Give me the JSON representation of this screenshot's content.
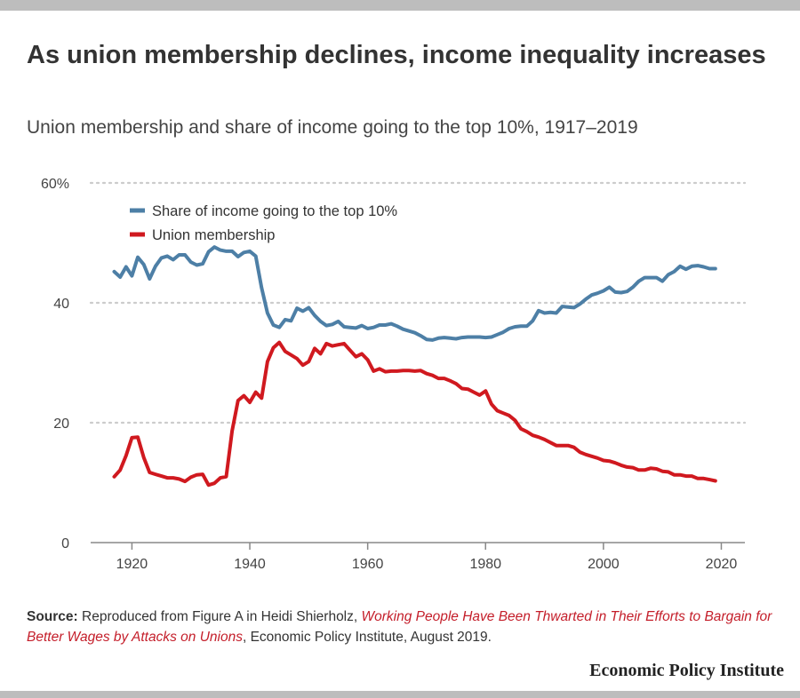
{
  "header": {
    "title": "As union membership declines, income inequality increases",
    "subtitle": "Union membership and share of income going to the top 10%, 1917–2019"
  },
  "colors": {
    "top10": "#4d7fa6",
    "union": "#d0191f",
    "grid": "#cccccc",
    "axis": "#888888"
  },
  "source": {
    "label": "Source:",
    "text_before": " Reproduced from Figure A in Heidi Shierholz, ",
    "ref_title": "Working People Have Been Thwarted in Their Efforts to Bargain for Better Wages by Attacks on Unions",
    "text_after": ", Economic Policy Institute, August 2019."
  },
  "brand": "Economic Policy Institute",
  "chart_data": {
    "type": "line",
    "title": "As union membership declines, income inequality increases",
    "subtitle": "Union membership and share of income going to the top 10%, 1917–2019",
    "xlabel": "",
    "ylabel": "",
    "xlim": [
      1913,
      2024
    ],
    "ylim": [
      0,
      60
    ],
    "x_ticks": [
      1920,
      1940,
      1960,
      1980,
      2000,
      2020
    ],
    "x_tick_labels": [
      "1920",
      "1940",
      "1960",
      "1980",
      "2000",
      "2020"
    ],
    "y_ticks": [
      0,
      20,
      40,
      60
    ],
    "y_tick_labels": [
      "0",
      "20",
      "40",
      "60%"
    ],
    "grid": "horizontal dotted",
    "legend_position": "top-left",
    "series": [
      {
        "name": "Share of income going to the top 10%",
        "color": "#4d7fa6",
        "x": [
          1917,
          1918,
          1919,
          1920,
          1921,
          1922,
          1923,
          1924,
          1925,
          1926,
          1927,
          1928,
          1929,
          1930,
          1931,
          1932,
          1933,
          1934,
          1935,
          1936,
          1937,
          1938,
          1939,
          1940,
          1941,
          1942,
          1943,
          1944,
          1945,
          1946,
          1947,
          1948,
          1949,
          1950,
          1951,
          1952,
          1953,
          1954,
          1955,
          1956,
          1957,
          1958,
          1959,
          1960,
          1961,
          1962,
          1963,
          1964,
          1965,
          1966,
          1967,
          1968,
          1969,
          1970,
          1971,
          1972,
          1973,
          1974,
          1975,
          1976,
          1977,
          1978,
          1979,
          1980,
          1981,
          1982,
          1983,
          1984,
          1985,
          1986,
          1987,
          1988,
          1989,
          1990,
          1991,
          1992,
          1993,
          1994,
          1995,
          1996,
          1997,
          1998,
          1999,
          2000,
          2001,
          2002,
          2003,
          2004,
          2005,
          2006,
          2007,
          2008,
          2009,
          2010,
          2011,
          2012,
          2013,
          2014,
          2015,
          2016,
          2017,
          2018,
          2019
        ],
        "values": [
          45.2,
          44.3,
          46.0,
          44.5,
          47.6,
          46.4,
          44.0,
          46.1,
          47.5,
          47.8,
          47.2,
          48.0,
          48.0,
          46.8,
          46.3,
          46.5,
          48.5,
          49.3,
          48.8,
          48.6,
          48.6,
          47.7,
          48.4,
          48.6,
          47.8,
          42.5,
          38.3,
          36.3,
          35.9,
          37.2,
          37.0,
          39.1,
          38.6,
          39.2,
          37.9,
          36.9,
          36.2,
          36.4,
          36.9,
          36.0,
          35.9,
          35.8,
          36.2,
          35.7,
          35.9,
          36.3,
          36.3,
          36.5,
          36.1,
          35.6,
          35.3,
          35.0,
          34.5,
          33.9,
          33.8,
          34.1,
          34.2,
          34.1,
          34.0,
          34.2,
          34.3,
          34.3,
          34.3,
          34.2,
          34.3,
          34.7,
          35.1,
          35.7,
          36.0,
          36.1,
          36.1,
          37.0,
          38.7,
          38.3,
          38.4,
          38.3,
          39.4,
          39.3,
          39.2,
          39.8,
          40.6,
          41.3,
          41.6,
          42.0,
          42.6,
          41.8,
          41.7,
          41.9,
          42.6,
          43.6,
          44.2,
          44.2,
          44.2,
          43.6,
          44.7,
          45.2,
          46.1,
          45.6,
          46.1,
          46.2,
          46.0,
          45.7,
          45.7
        ]
      },
      {
        "name": "Union membership",
        "color": "#d0191f",
        "x": [
          1917,
          1918,
          1919,
          1920,
          1921,
          1922,
          1923,
          1924,
          1925,
          1926,
          1927,
          1928,
          1929,
          1930,
          1931,
          1932,
          1933,
          1934,
          1935,
          1936,
          1937,
          1938,
          1939,
          1940,
          1941,
          1942,
          1943,
          1944,
          1945,
          1946,
          1947,
          1948,
          1949,
          1950,
          1951,
          1952,
          1953,
          1954,
          1955,
          1956,
          1957,
          1958,
          1959,
          1960,
          1961,
          1962,
          1963,
          1964,
          1965,
          1966,
          1967,
          1968,
          1969,
          1970,
          1971,
          1972,
          1973,
          1974,
          1975,
          1976,
          1977,
          1978,
          1979,
          1980,
          1981,
          1982,
          1983,
          1984,
          1985,
          1986,
          1987,
          1988,
          1989,
          1990,
          1991,
          1992,
          1993,
          1994,
          1995,
          1996,
          1997,
          1998,
          1999,
          2000,
          2001,
          2002,
          2003,
          2004,
          2005,
          2006,
          2007,
          2008,
          2009,
          2010,
          2011,
          2012,
          2013,
          2014,
          2015,
          2016,
          2017,
          2018,
          2019
        ],
        "values": [
          11.0,
          12.1,
          14.5,
          17.5,
          17.6,
          14.2,
          11.7,
          11.4,
          11.1,
          10.8,
          10.8,
          10.6,
          10.2,
          10.9,
          11.3,
          11.4,
          9.6,
          9.9,
          10.8,
          11.0,
          18.6,
          23.7,
          24.5,
          23.4,
          25.1,
          24.1,
          30.2,
          32.5,
          33.4,
          31.9,
          31.3,
          30.7,
          29.6,
          30.2,
          32.4,
          31.5,
          33.2,
          32.8,
          33.0,
          33.2,
          32.1,
          31.0,
          31.5,
          30.5,
          28.6,
          29.0,
          28.5,
          28.6,
          28.6,
          28.7,
          28.7,
          28.6,
          28.7,
          28.2,
          27.9,
          27.4,
          27.4,
          27.0,
          26.5,
          25.7,
          25.6,
          25.1,
          24.6,
          25.3,
          23.1,
          22.0,
          21.6,
          21.2,
          20.4,
          19.0,
          18.5,
          17.9,
          17.6,
          17.2,
          16.7,
          16.2,
          16.2,
          16.2,
          15.9,
          15.1,
          14.7,
          14.4,
          14.1,
          13.7,
          13.6,
          13.3,
          12.9,
          12.6,
          12.5,
          12.1,
          12.1,
          12.4,
          12.3,
          11.9,
          11.8,
          11.3,
          11.3,
          11.1,
          11.1,
          10.7,
          10.7,
          10.5,
          10.3
        ]
      }
    ]
  }
}
